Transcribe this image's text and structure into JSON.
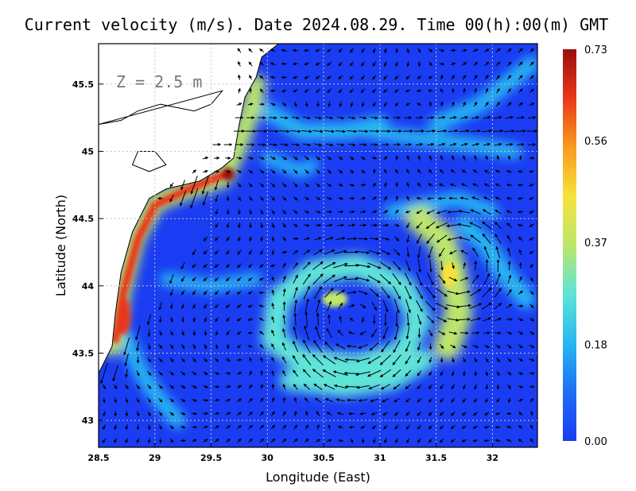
{
  "title": "Current velocity (m/s). Date 2024.08.29. Time 00(h):00(m) GMT",
  "depth_label": "Z = 2.5 m",
  "colors": {
    "ramp": [
      "#1a3cf2",
      "#1e6ef5",
      "#27b7f2",
      "#5fe4d8",
      "#bde66a",
      "#f7e23c",
      "#f99a1e",
      "#e8381a",
      "#9a0e0e"
    ],
    "land": "#ffffff",
    "coast": "#000000",
    "grid": "#c8c8c8",
    "arrow": "#000000"
  },
  "chart_data": {
    "type": "heatmap",
    "title": "Current velocity (m/s). Date 2024.08.29. Time 00(h):00(m) GMT",
    "xlabel": "Longitude (East)",
    "ylabel": "Latitude (North)",
    "xlim": [
      28.5,
      32.4
    ],
    "ylim": [
      42.8,
      45.8
    ],
    "x_ticks": [
      "28.5",
      "29",
      "29.5",
      "30",
      "30.5",
      "31",
      "31.5",
      "32"
    ],
    "y_ticks": [
      "43",
      "43.5",
      "44",
      "44.5",
      "45",
      "45.5"
    ],
    "grid": true,
    "vectors": true,
    "colorbar": {
      "label_values": [
        "0.73",
        "0.56",
        "0.37",
        "0.18",
        "0.00"
      ],
      "min": 0.0,
      "max": 0.73
    },
    "features": [
      {
        "name": "coastal jet",
        "max_speed": 0.73,
        "lon": [
          28.65,
          29.7
        ],
        "lat": [
          43.5,
          44.85
        ]
      },
      {
        "name": "anticyclonic eddy",
        "lon": 30.8,
        "lat": 43.65,
        "speed": 0.37
      },
      {
        "name": "cyclonic meander",
        "lon": 31.65,
        "lat": 44.2,
        "speed": 0.4
      }
    ]
  }
}
